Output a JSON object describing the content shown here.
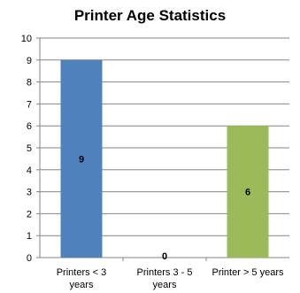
{
  "chart_data": {
    "type": "bar",
    "title": "Printer Age Statistics",
    "categories": [
      [
        "Printers < 3",
        "years"
      ],
      [
        "Printers 3 - 5",
        "years"
      ],
      [
        "Printer > 5 years"
      ]
    ],
    "values": [
      9,
      0,
      6
    ],
    "colors": [
      "#4f81bd",
      "#c0504d",
      "#9bbb59"
    ],
    "ylim": [
      0,
      10
    ],
    "yticks": [
      0,
      1,
      2,
      3,
      4,
      5,
      6,
      7,
      8,
      9,
      10
    ],
    "grid": true,
    "data_labels": true
  }
}
